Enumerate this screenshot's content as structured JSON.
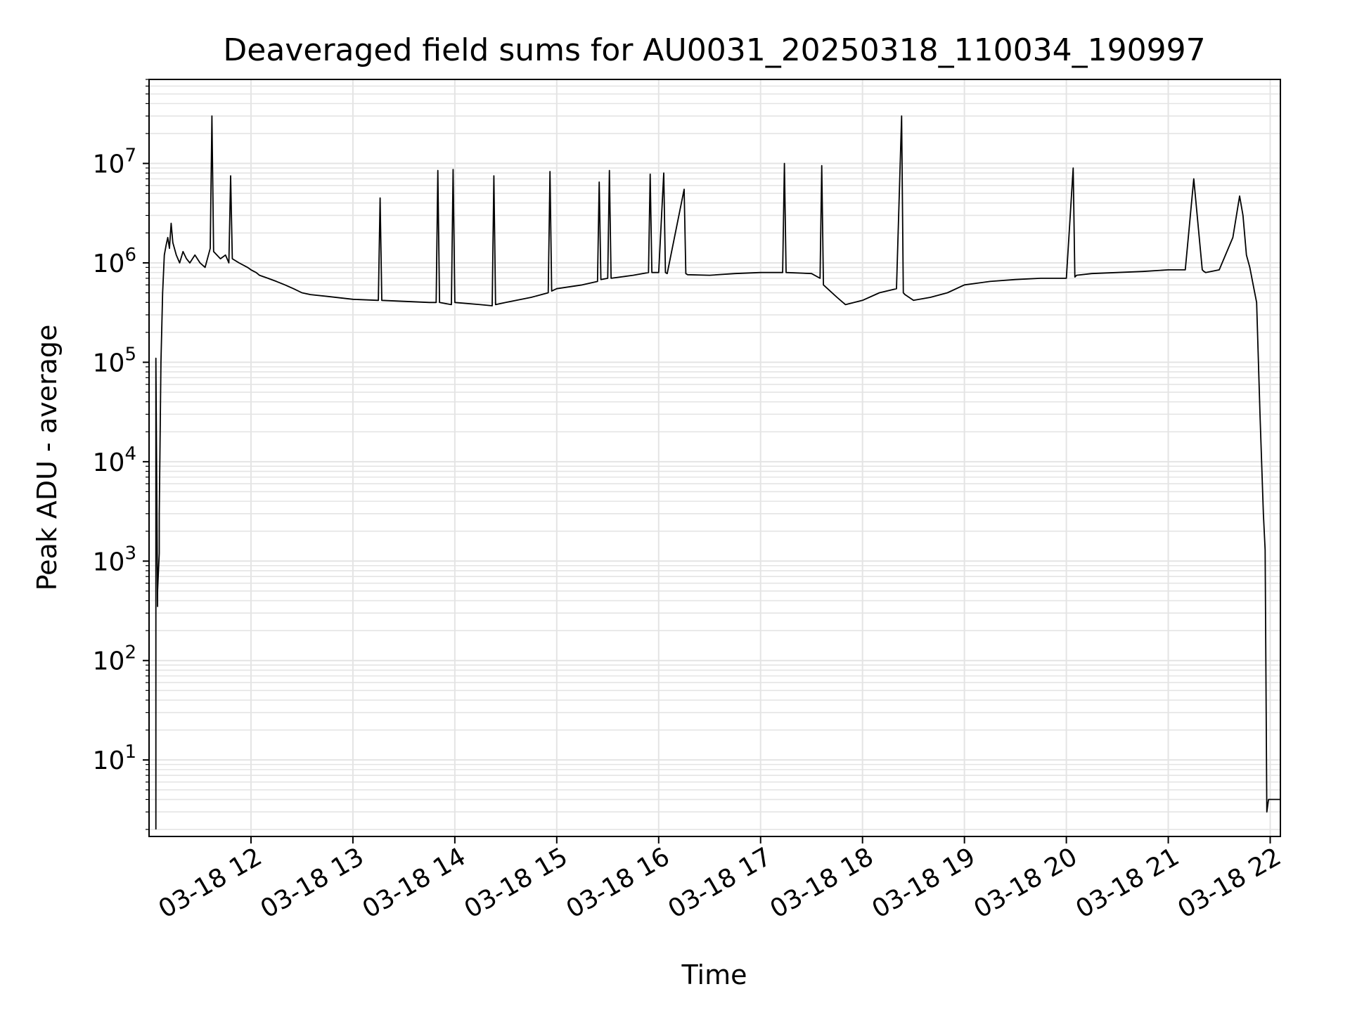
{
  "chart_data": {
    "type": "line",
    "title": "Deaveraged field sums for AU0031_20250318_110034_190997",
    "xlabel": "Time",
    "ylabel": "Peak ADU - average",
    "yscale": "log",
    "ylim": [
      1.7,
      70000000
    ],
    "xlim": [
      "2025-03-18 11:00",
      "2025-03-18 22:06"
    ],
    "grid": true,
    "line_color": "#000000",
    "grid_color": "#e4e4e4",
    "x_ticks": [
      {
        "t": "2025-03-18 12:00",
        "label": "03-18 12"
      },
      {
        "t": "2025-03-18 13:00",
        "label": "03-18 13"
      },
      {
        "t": "2025-03-18 14:00",
        "label": "03-18 14"
      },
      {
        "t": "2025-03-18 15:00",
        "label": "03-18 15"
      },
      {
        "t": "2025-03-18 16:00",
        "label": "03-18 16"
      },
      {
        "t": "2025-03-18 17:00",
        "label": "03-18 17"
      },
      {
        "t": "2025-03-18 18:00",
        "label": "03-18 18"
      },
      {
        "t": "2025-03-18 19:00",
        "label": "03-18 19"
      },
      {
        "t": "2025-03-18 20:00",
        "label": "03-18 20"
      },
      {
        "t": "2025-03-18 21:00",
        "label": "03-18 21"
      },
      {
        "t": "2025-03-18 22:00",
        "label": "03-18 22"
      }
    ],
    "y_ticks": [
      {
        "value": 10,
        "base": "10",
        "exp": "1"
      },
      {
        "value": 100,
        "base": "10",
        "exp": "2"
      },
      {
        "value": 1000,
        "base": "10",
        "exp": "3"
      },
      {
        "value": 10000,
        "base": "10",
        "exp": "4"
      },
      {
        "value": 100000,
        "base": "10",
        "exp": "5"
      },
      {
        "value": 1000000,
        "base": "10",
        "exp": "6"
      },
      {
        "value": 10000000,
        "base": "10",
        "exp": "7"
      }
    ],
    "series": [
      {
        "x": [
          "2025-03-18 11:04",
          "2025-03-18 11:04",
          "2025-03-18 11:05",
          "2025-03-18 11:05",
          "2025-03-18 11:06",
          "2025-03-18 11:06",
          "2025-03-18 11:07",
          "2025-03-18 11:08",
          "2025-03-18 11:09",
          "2025-03-18 11:10",
          "2025-03-18 11:11",
          "2025-03-18 11:12",
          "2025-03-18 11:13",
          "2025-03-18 11:14",
          "2025-03-18 11:16",
          "2025-03-18 11:18",
          "2025-03-18 11:20",
          "2025-03-18 11:22",
          "2025-03-18 11:24",
          "2025-03-18 11:27",
          "2025-03-18 11:30",
          "2025-03-18 11:33",
          "2025-03-18 11:36",
          "2025-03-18 11:37",
          "2025-03-18 11:38",
          "2025-03-18 11:42",
          "2025-03-18 11:45",
          "2025-03-18 11:47",
          "2025-03-18 11:48",
          "2025-03-18 11:49",
          "2025-03-18 11:53",
          "2025-03-18 11:58",
          "2025-03-18 12:00",
          "2025-03-18 12:03",
          "2025-03-18 12:05",
          "2025-03-18 12:10",
          "2025-03-18 12:15",
          "2025-03-18 12:20",
          "2025-03-18 12:25",
          "2025-03-18 12:30",
          "2025-03-18 12:35",
          "2025-03-18 12:45",
          "2025-03-18 13:00",
          "2025-03-18 13:15",
          "2025-03-18 13:16",
          "2025-03-18 13:17",
          "2025-03-18 13:30",
          "2025-03-18 13:45",
          "2025-03-18 13:49",
          "2025-03-18 13:50",
          "2025-03-18 13:51",
          "2025-03-18 13:58",
          "2025-03-18 13:59",
          "2025-03-18 14:00",
          "2025-03-18 14:15",
          "2025-03-18 14:22",
          "2025-03-18 14:23",
          "2025-03-18 14:24",
          "2025-03-18 14:30",
          "2025-03-18 14:45",
          "2025-03-18 14:55",
          "2025-03-18 14:56",
          "2025-03-18 14:57",
          "2025-03-18 15:00",
          "2025-03-18 15:15",
          "2025-03-18 15:24",
          "2025-03-18 15:25",
          "2025-03-18 15:26",
          "2025-03-18 15:30",
          "2025-03-18 15:31",
          "2025-03-18 15:32",
          "2025-03-18 15:45",
          "2025-03-18 15:54",
          "2025-03-18 15:55",
          "2025-03-18 15:56",
          "2025-03-18 16:00",
          "2025-03-18 16:03",
          "2025-03-18 16:04",
          "2025-03-18 16:05",
          "2025-03-18 16:15",
          "2025-03-18 16:16",
          "2025-03-18 16:17",
          "2025-03-18 16:30",
          "2025-03-18 16:45",
          "2025-03-18 17:00",
          "2025-03-18 17:13",
          "2025-03-18 17:14",
          "2025-03-18 17:15",
          "2025-03-18 17:30",
          "2025-03-18 17:35",
          "2025-03-18 17:36",
          "2025-03-18 17:37",
          "2025-03-18 17:45",
          "2025-03-18 17:50",
          "2025-03-18 18:00",
          "2025-03-18 18:10",
          "2025-03-18 18:20",
          "2025-03-18 18:23",
          "2025-03-18 18:24",
          "2025-03-18 18:25",
          "2025-03-18 18:30",
          "2025-03-18 18:40",
          "2025-03-18 18:50",
          "2025-03-18 19:00",
          "2025-03-18 19:15",
          "2025-03-18 19:30",
          "2025-03-18 19:45",
          "2025-03-18 20:00",
          "2025-03-18 20:04",
          "2025-03-18 20:05",
          "2025-03-18 20:06",
          "2025-03-18 20:15",
          "2025-03-18 20:30",
          "2025-03-18 20:45",
          "2025-03-18 21:00",
          "2025-03-18 21:10",
          "2025-03-18 21:15",
          "2025-03-18 21:20",
          "2025-03-18 21:21",
          "2025-03-18 21:22",
          "2025-03-18 21:30",
          "2025-03-18 21:38",
          "2025-03-18 21:42",
          "2025-03-18 21:44",
          "2025-03-18 21:46",
          "2025-03-18 21:48",
          "2025-03-18 21:50",
          "2025-03-18 21:52",
          "2025-03-18 21:54",
          "2025-03-18 21:56",
          "2025-03-18 21:57",
          "2025-03-18 21:58",
          "2025-03-18 21:59",
          "2025-03-18 22:00",
          "2025-03-18 22:06"
        ],
        "y": [
          2,
          110000,
          350,
          500,
          1200,
          3000,
          100000,
          500000,
          1200000,
          1500000,
          1800000,
          1400000,
          2500000,
          1600000,
          1200000,
          1000000,
          1300000,
          1100000,
          1000000,
          1200000,
          1000000,
          900000,
          1400000,
          30000000,
          1300000,
          1100000,
          1200000,
          1000000,
          7500000,
          1100000,
          1000000,
          900000,
          850000,
          800000,
          750000,
          700000,
          650000,
          600000,
          550000,
          500000,
          480000,
          460000,
          430000,
          420000,
          4500000,
          420000,
          410000,
          400000,
          400000,
          8500000,
          400000,
          380000,
          8700000,
          400000,
          380000,
          370000,
          7500000,
          380000,
          400000,
          450000,
          500000,
          8300000,
          520000,
          550000,
          600000,
          650000,
          6500000,
          680000,
          700000,
          8500000,
          700000,
          750000,
          800000,
          7800000,
          800000,
          800000,
          8000000,
          800000,
          780000,
          5500000,
          780000,
          760000,
          750000,
          780000,
          800000,
          800000,
          10000000,
          800000,
          780000,
          700000,
          9500000,
          600000,
          450000,
          380000,
          420000,
          500000,
          550000,
          30000000,
          500000,
          480000,
          420000,
          450000,
          500000,
          600000,
          650000,
          680000,
          700000,
          700000,
          9000000,
          720000,
          750000,
          780000,
          800000,
          820000,
          850000,
          850000,
          7000000,
          850000,
          820000,
          800000,
          850000,
          1800000,
          4700000,
          3000000,
          1200000,
          900000,
          600000,
          400000,
          30000,
          3000,
          1300,
          3,
          4,
          4,
          4
        ]
      }
    ]
  }
}
